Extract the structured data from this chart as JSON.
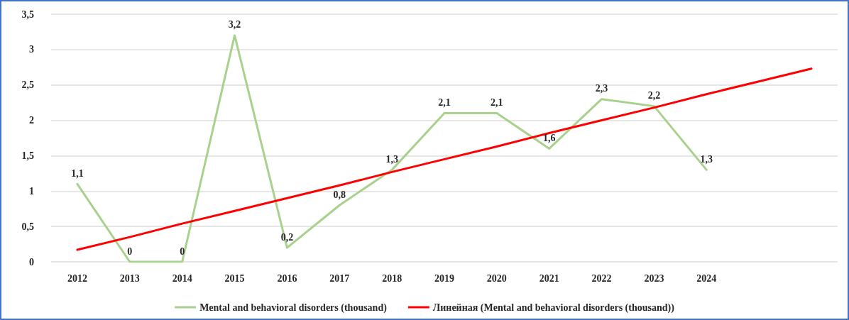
{
  "chart_data": {
    "type": "line",
    "categories": [
      "2012",
      "2013",
      "2014",
      "2015",
      "2016",
      "2017",
      "2018",
      "2019",
      "2020",
      "2021",
      "2022",
      "2023",
      "2024",
      null,
      null
    ],
    "series": [
      {
        "name": "Mental and behavioral disorders (thousand)",
        "color": "#a9d18e",
        "values": [
          1.1,
          0,
          0,
          3.2,
          0.2,
          0.8,
          1.3,
          2.1,
          2.1,
          1.6,
          2.3,
          2.2,
          1.3,
          null,
          null
        ],
        "value_labels": [
          "1,1",
          "0",
          "0",
          "3,2",
          "0,2",
          "0,8",
          "1,3",
          "2,1",
          "2,1",
          "1,6",
          "2,3",
          "2,2",
          "1,3",
          null,
          null
        ]
      },
      {
        "name": "Линейная (Mental and behavioral disorders (thousand))",
        "color": "#ff0000",
        "values": [
          0.17,
          0.35,
          0.54,
          0.72,
          0.9,
          1.08,
          1.27,
          1.45,
          1.63,
          1.82,
          2.0,
          2.18,
          2.37,
          2.55,
          2.73
        ]
      }
    ],
    "ylim": [
      0,
      3.5
    ],
    "yticks": [
      0,
      {
        "value": 0.5,
        "label": "0,5"
      },
      1,
      {
        "value": 1.5,
        "label": "1,5"
      },
      2,
      {
        "value": 2.5,
        "label": "2,5"
      },
      3,
      {
        "value": 3.5,
        "label": "3,5"
      }
    ],
    "grid": "y",
    "legend": "bottom",
    "marker": "none",
    "line_style": "solid"
  }
}
